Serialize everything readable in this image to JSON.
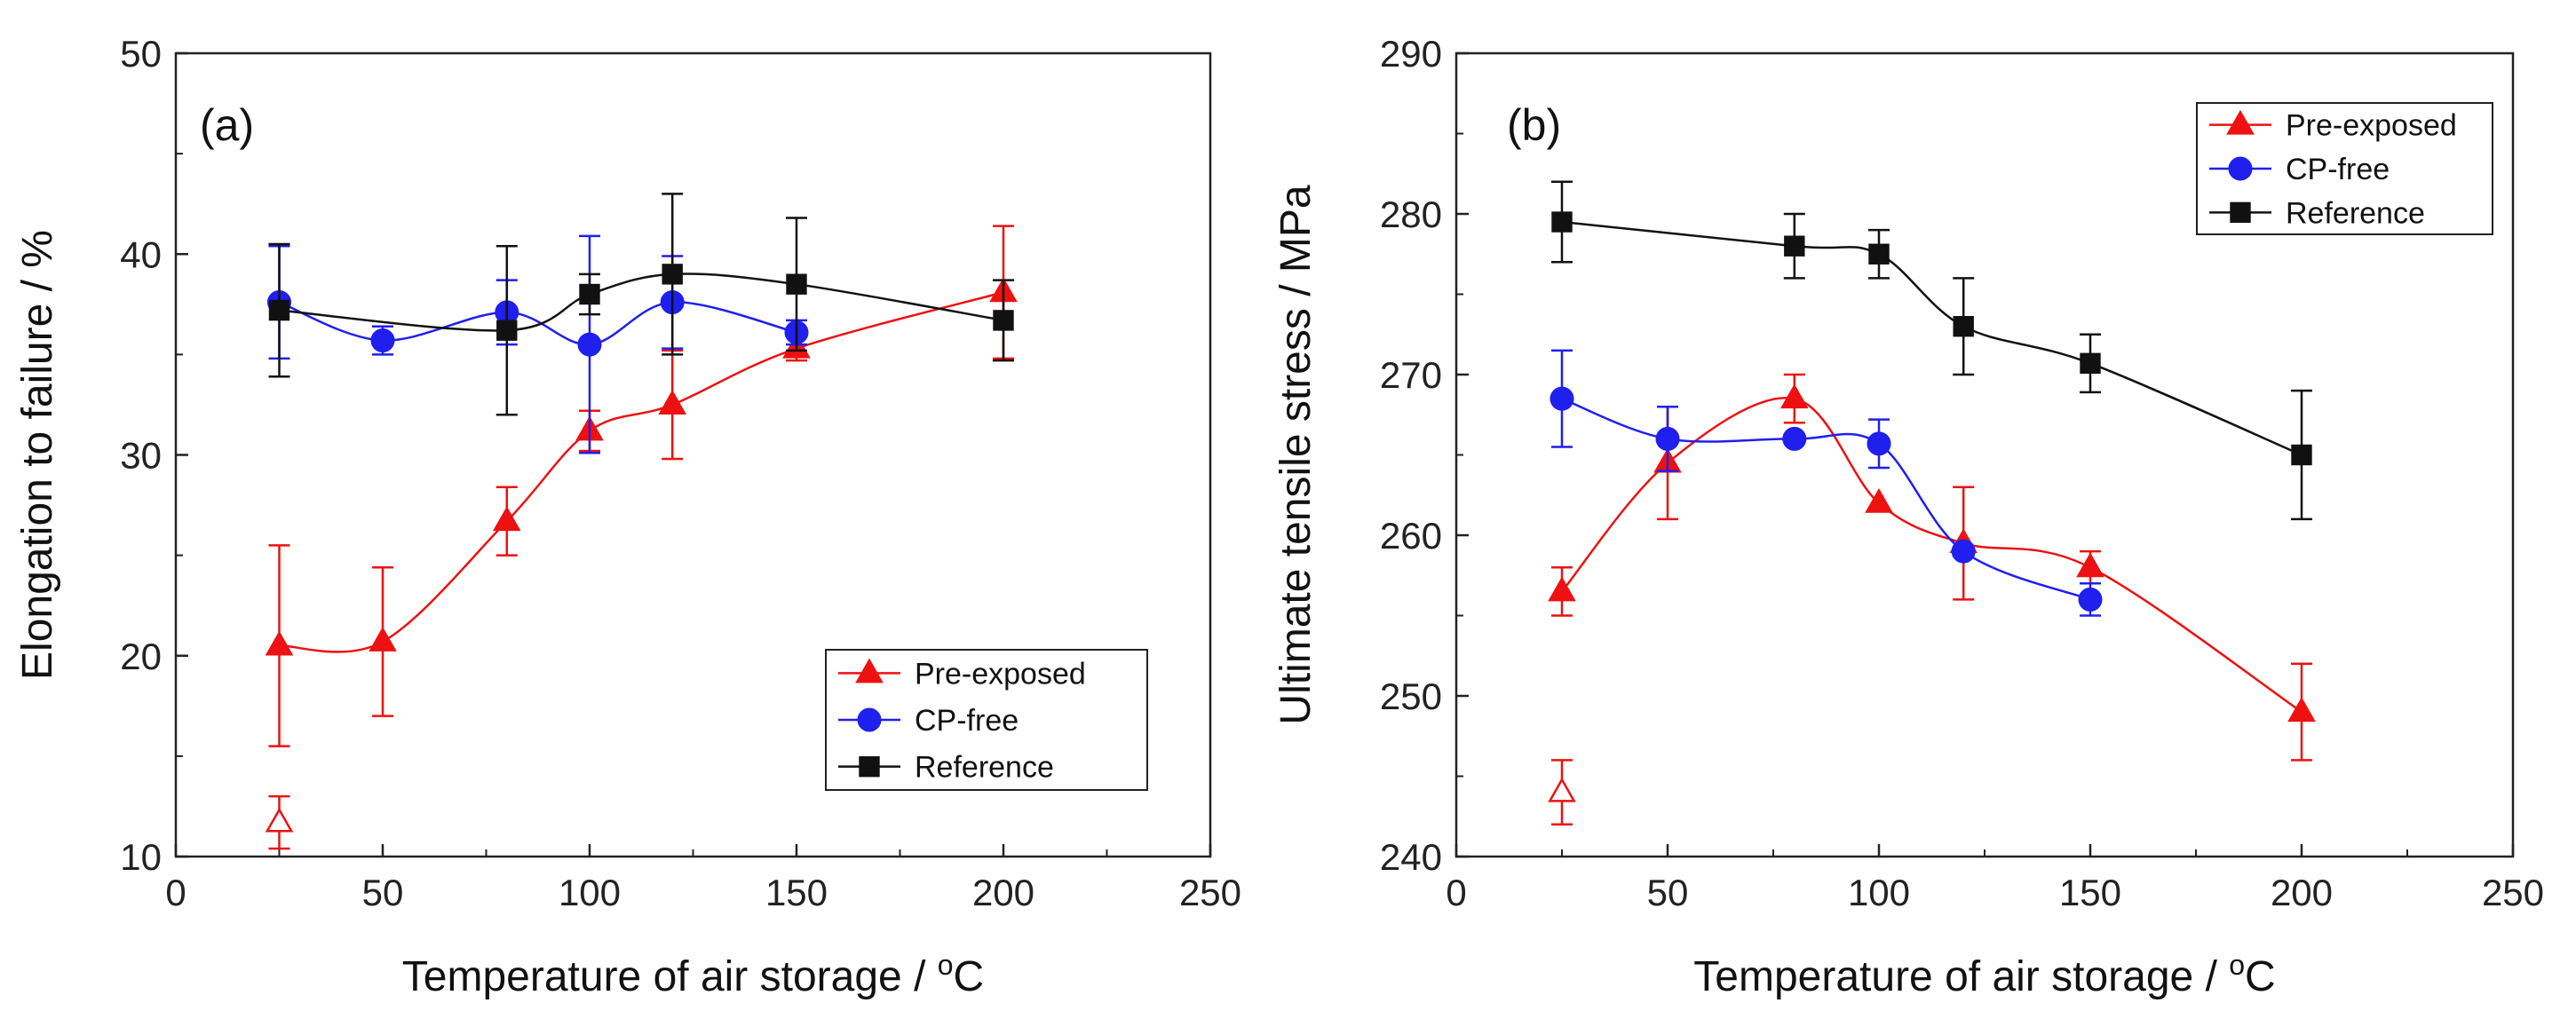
{
  "chart_data": [
    {
      "type": "scatter",
      "panel_label": "(a)",
      "xlabel": "Temperature of air storage / ",
      "xlabel_unit": "C",
      "xlabel_sup": "o",
      "ylabel": "Elongation to failure / %",
      "xlim": [
        0,
        250
      ],
      "ylim": [
        10,
        50
      ],
      "xticks": [
        0,
        50,
        100,
        150,
        200,
        250
      ],
      "yticks": [
        10,
        20,
        30,
        40,
        50
      ],
      "legend_position": "lower-right",
      "series": [
        {
          "name": "Pre-exposed",
          "color": "#ee1111",
          "marker": "triangle",
          "x": [
            25,
            50,
            80,
            100,
            120,
            150,
            200
          ],
          "y": [
            20.5,
            20.7,
            26.7,
            31.2,
            32.5,
            35.3,
            38.1
          ],
          "err": [
            5.0,
            3.7,
            1.7,
            1.0,
            2.7,
            0.6,
            3.3
          ],
          "extra": {
            "x": 25,
            "y": 11.7,
            "err": 1.3,
            "marker": "triangle-open"
          }
        },
        {
          "name": "CP-free",
          "color": "#1f1fee",
          "marker": "circle",
          "x": [
            25,
            50,
            80,
            100,
            120,
            150
          ],
          "y": [
            37.6,
            35.7,
            37.1,
            35.5,
            37.6,
            36.1
          ],
          "err": [
            2.8,
            0.7,
            1.6,
            5.4,
            2.3,
            0.6
          ]
        },
        {
          "name": "Reference",
          "color": "#111111",
          "marker": "square",
          "x": [
            25,
            80,
            100,
            120,
            150,
            200
          ],
          "y": [
            37.2,
            36.2,
            38.0,
            39.0,
            38.5,
            36.7
          ],
          "err": [
            3.3,
            4.2,
            1.0,
            4.0,
            3.3,
            2.0
          ]
        }
      ]
    },
    {
      "type": "scatter",
      "panel_label": "(b)",
      "xlabel": "Temperature of air storage / ",
      "xlabel_unit": "C",
      "xlabel_sup": "o",
      "ylabel": "Ultimate tensile stress / MPa",
      "xlim": [
        0,
        250
      ],
      "ylim": [
        240,
        290
      ],
      "xticks": [
        0,
        50,
        100,
        150,
        200,
        250
      ],
      "yticks": [
        240,
        250,
        260,
        270,
        280,
        290
      ],
      "legend_position": "top-right",
      "series": [
        {
          "name": "Pre-exposed",
          "color": "#ee1111",
          "marker": "triangle",
          "x": [
            25,
            50,
            80,
            100,
            120,
            150,
            200
          ],
          "y": [
            256.5,
            264.5,
            268.5,
            262.0,
            259.5,
            258.0,
            249.0
          ],
          "err": [
            1.5,
            3.5,
            1.5,
            0.0,
            3.5,
            1.0,
            3.0
          ],
          "extra": {
            "x": 25,
            "y": 244.0,
            "err": 2.0,
            "marker": "triangle-open"
          }
        },
        {
          "name": "CP-free",
          "color": "#1f1fee",
          "marker": "circle",
          "x": [
            25,
            50,
            80,
            100,
            120,
            150
          ],
          "y": [
            268.5,
            266.0,
            266.0,
            265.7,
            259.0,
            256.0
          ],
          "err": [
            3.0,
            2.0,
            0.0,
            1.5,
            0.0,
            1.0
          ]
        },
        {
          "name": "Reference",
          "color": "#111111",
          "marker": "square",
          "x": [
            25,
            80,
            100,
            120,
            150,
            200
          ],
          "y": [
            279.5,
            278.0,
            277.5,
            273.0,
            270.7,
            265.0
          ],
          "err": [
            2.5,
            2.0,
            1.5,
            3.0,
            1.8,
            4.0
          ]
        }
      ]
    }
  ]
}
